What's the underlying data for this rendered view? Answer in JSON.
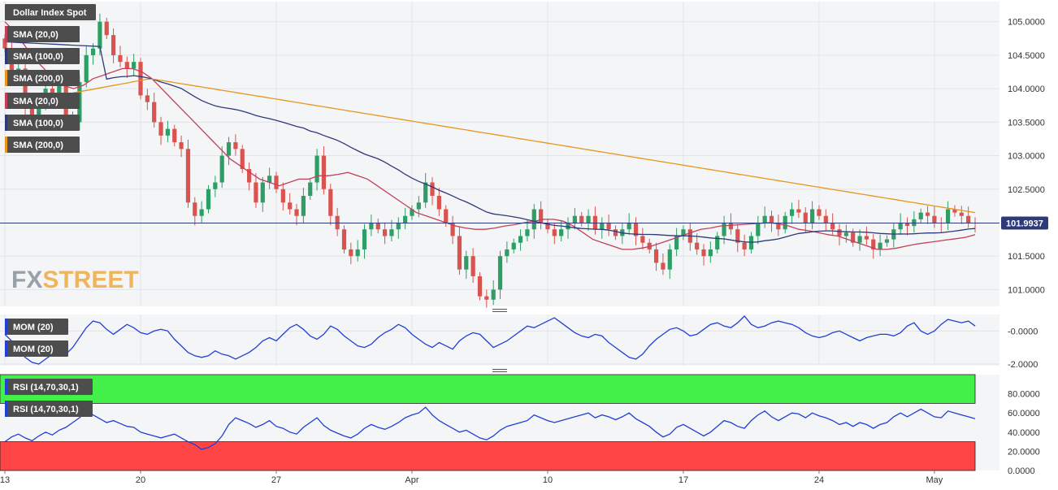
{
  "chart_data": [
    {
      "type": "candlestick",
      "instrument": "Dollar Index Spot",
      "indicators": [
        {
          "name": "SMA (20,0)",
          "color": "#c2405a"
        },
        {
          "name": "SMA (100,0)",
          "color": "#2e3a78"
        },
        {
          "name": "SMA (200,0)",
          "color": "#e8961e"
        },
        {
          "name": "SMA (20,0)",
          "color": "#c2405a"
        },
        {
          "name": "SMA (100,0)",
          "color": "#2e3a78"
        },
        {
          "name": "SMA (200,0)",
          "color": "#e8961e"
        }
      ],
      "current_price": "101.9937",
      "current_price_value": 101.9937,
      "ylim": [
        100.75,
        105.3
      ],
      "y_ticks": [
        "105.0000",
        "104.5000",
        "104.0000",
        "103.5000",
        "103.0000",
        "102.5000",
        "101.5000",
        "101.0000"
      ],
      "x_ticks": [
        {
          "label": "13",
          "index": 0
        },
        {
          "label": "20",
          "index": 20
        },
        {
          "label": "27",
          "index": 40
        },
        {
          "label": "Apr",
          "index": 60
        },
        {
          "label": "10",
          "index": 80
        },
        {
          "label": "17",
          "index": 100
        },
        {
          "label": "24",
          "index": 120
        },
        {
          "label": "May",
          "index": 137
        }
      ],
      "candle_count": 144,
      "close": [
        104.6,
        104.2,
        104.3,
        103.7,
        103.6,
        103.8,
        104.0,
        103.9,
        104.1,
        103.6,
        103.5,
        104.1,
        104.5,
        104.6,
        105.0,
        104.8,
        104.5,
        104.4,
        104.3,
        104.4,
        103.9,
        103.8,
        103.5,
        103.3,
        103.4,
        103.2,
        103.1,
        102.3,
        102.1,
        102.2,
        102.5,
        102.6,
        103.0,
        103.2,
        103.1,
        102.8,
        102.6,
        102.3,
        102.6,
        102.7,
        102.5,
        102.3,
        102.2,
        102.1,
        102.4,
        102.6,
        103.0,
        102.5,
        102.1,
        101.9,
        101.6,
        101.5,
        101.6,
        101.9,
        102.0,
        101.9,
        101.8,
        101.9,
        102.0,
        102.1,
        102.2,
        102.3,
        102.6,
        102.4,
        102.2,
        102.0,
        101.8,
        101.3,
        101.5,
        101.2,
        100.9,
        100.85,
        101.0,
        101.5,
        101.6,
        101.7,
        101.8,
        101.9,
        102.2,
        102.0,
        101.9,
        101.8,
        101.9,
        102.0,
        102.1,
        102.0,
        102.1,
        101.9,
        102.0,
        101.9,
        101.8,
        101.9,
        102.0,
        101.8,
        101.7,
        101.6,
        101.4,
        101.3,
        101.6,
        101.8,
        101.9,
        101.7,
        101.6,
        101.5,
        101.6,
        101.8,
        102.0,
        101.9,
        101.7,
        101.6,
        101.8,
        102.0,
        102.1,
        102.0,
        101.9,
        102.1,
        102.2,
        102.15,
        102.0,
        102.2,
        102.1,
        102.0,
        101.9,
        101.8,
        101.85,
        101.7,
        101.8,
        101.75,
        101.6,
        101.7,
        101.75,
        101.9,
        102.0,
        101.95,
        102.05,
        102.15,
        102.1,
        102.0,
        101.99,
        102.2,
        102.15,
        102.1,
        102.0,
        101.9937
      ],
      "sma20": [
        105.0,
        104.85,
        104.65,
        104.45,
        104.3,
        104.15,
        104.05,
        104.0,
        104.05,
        104.15,
        104.2,
        104.25,
        104.3,
        104.3,
        104.25,
        104.15,
        104.0,
        103.85,
        103.7,
        103.55,
        103.4,
        103.25,
        103.1,
        102.95,
        102.85,
        102.75,
        102.65,
        102.6,
        102.55,
        102.6,
        102.65,
        102.65,
        102.7,
        102.7,
        102.72,
        102.75,
        102.7,
        102.65,
        102.55,
        102.45,
        102.35,
        102.25,
        102.15,
        102.1,
        102.05,
        102.0,
        101.95,
        101.92,
        101.9,
        101.9,
        101.92,
        101.95,
        101.97,
        102.0,
        102.02,
        102.05,
        102.05,
        102.02,
        101.95,
        101.85,
        101.75,
        101.7,
        101.65,
        101.6,
        101.6,
        101.62,
        101.65,
        101.7,
        101.75,
        101.8,
        101.85,
        101.9,
        101.92,
        101.95,
        101.96,
        101.97,
        101.98,
        101.99,
        102.0,
        101.98,
        101.95,
        101.9,
        101.88,
        101.85,
        101.82,
        101.8,
        101.75,
        101.7,
        101.65,
        101.6,
        101.6,
        101.62,
        101.65,
        101.68,
        101.7,
        101.72,
        101.74,
        101.76,
        101.78,
        101.82
      ]
    },
    {
      "type": "line",
      "indicator": "MOM (20)",
      "legend": [
        "MOM (20)",
        "MOM (20)"
      ],
      "y_ticks": [
        "-0.0000",
        "-2.0000"
      ],
      "ylim": [
        -2.1,
        1.0
      ],
      "values": [
        -0.2,
        -0.6,
        -1.2,
        -1.6,
        -1.9,
        -2.0,
        -1.7,
        -1.4,
        -1.3,
        -1.4,
        -1.0,
        -0.4,
        0.2,
        0.6,
        0.5,
        0.1,
        -0.2,
        0.1,
        0.4,
        0.2,
        -0.1,
        -0.2,
        0.0,
        0.1,
        0.0,
        -0.5,
        -0.9,
        -1.3,
        -1.5,
        -1.6,
        -1.5,
        -1.2,
        -1.4,
        -1.5,
        -1.7,
        -1.5,
        -1.3,
        -1.0,
        -0.6,
        -0.4,
        -0.6,
        -0.2,
        0.2,
        0.4,
        0.1,
        -0.3,
        -0.5,
        -0.2,
        0.3,
        0.1,
        -0.3,
        -0.6,
        -0.9,
        -1.0,
        -0.8,
        -0.4,
        -0.1,
        0.1,
        0.4,
        0.2,
        -0.2,
        -0.5,
        -0.8,
        -1.0,
        -0.7,
        -0.9,
        -1.1,
        -0.6,
        -0.3,
        -0.1,
        -0.2,
        -0.6,
        -1.0,
        -0.8,
        -0.6,
        -0.3,
        0.0,
        0.3,
        0.2,
        0.4,
        0.6,
        0.8,
        0.5,
        0.2,
        -0.1,
        -0.3,
        -0.4,
        -0.2,
        -0.3,
        -0.7,
        -1.0,
        -1.3,
        -1.6,
        -1.7,
        -1.4,
        -0.9,
        -0.5,
        -0.2,
        0.1,
        0.2,
        0.0,
        -0.3,
        -0.2,
        0.1,
        0.4,
        0.5,
        0.3,
        0.2,
        0.5,
        0.9,
        0.4,
        0.2,
        0.3,
        0.5,
        0.6,
        0.5,
        0.4,
        0.2,
        -0.1,
        -0.3,
        -0.4,
        -0.3,
        -0.1,
        0.0,
        -0.2,
        -0.4,
        -0.6,
        -0.4,
        -0.3,
        -0.2,
        -0.2,
        -0.3,
        -0.1,
        0.3,
        0.5,
        0.0,
        -0.2,
        0.0,
        0.4,
        0.7,
        0.6,
        0.5,
        0.6,
        0.3
      ]
    },
    {
      "type": "line",
      "indicator": "RSI (14,70,30,1)",
      "legend": [
        "RSI (14,70,30,1)",
        "RSI (14,70,30,1)"
      ],
      "y_ticks": [
        "80.0000",
        "60.0000",
        "40.0000",
        "20.0000",
        "0.0000"
      ],
      "ylim": [
        0,
        100
      ],
      "overbought": 70,
      "oversold": 30,
      "overbought_color": "#43f04a",
      "oversold_color": "#ff4545",
      "values": [
        30,
        35,
        38,
        34,
        31,
        36,
        40,
        37,
        42,
        45,
        50,
        55,
        62,
        58,
        54,
        50,
        52,
        49,
        46,
        45,
        40,
        38,
        36,
        34,
        36,
        38,
        34,
        30,
        27,
        22,
        24,
        28,
        36,
        48,
        55,
        52,
        49,
        45,
        48,
        52,
        46,
        44,
        40,
        38,
        45,
        50,
        55,
        47,
        42,
        39,
        36,
        34,
        38,
        44,
        48,
        45,
        43,
        46,
        50,
        55,
        58,
        60,
        66,
        58,
        52,
        48,
        44,
        40,
        42,
        38,
        34,
        32,
        36,
        42,
        46,
        48,
        50,
        52,
        58,
        55,
        52,
        50,
        52,
        54,
        56,
        58,
        60,
        55,
        58,
        56,
        53,
        56,
        60,
        54,
        50,
        46,
        40,
        35,
        38,
        45,
        48,
        44,
        40,
        36,
        40,
        46,
        52,
        50,
        46,
        44,
        52,
        58,
        62,
        56,
        52,
        56,
        60,
        59,
        55,
        60,
        57,
        55,
        52,
        48,
        50,
        46,
        50,
        48,
        44,
        48,
        50,
        56,
        60,
        56,
        60,
        64,
        60,
        56,
        55,
        62,
        60,
        58,
        56,
        54
      ]
    }
  ],
  "watermark": {
    "part1": "FX",
    "part2": "STREET"
  }
}
